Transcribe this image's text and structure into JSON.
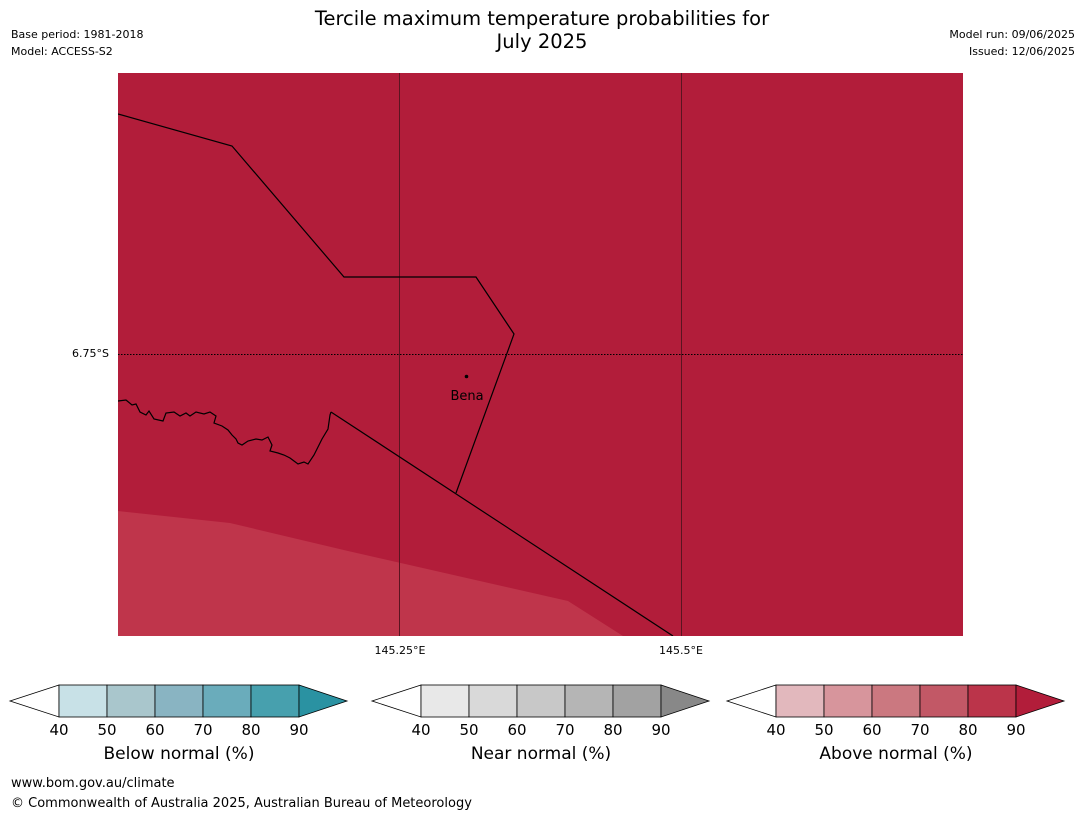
{
  "header": {
    "title_line1": "Tercile maximum temperature probabilities for",
    "title_line2": "July 2025",
    "base_period": "Base period: 1981-2018",
    "model": "Model: ACCESS-S2",
    "model_run": "Model run: 09/06/2025",
    "issued": "Issued: 12/06/2025"
  },
  "map": {
    "place_label": "Bena",
    "lat_label": "6.75°S",
    "lon_labels": [
      "145.25°E",
      "145.5°E"
    ],
    "colors": {
      "fill_main": "#b21d3a",
      "fill_light": "#bf354b",
      "border": "#000000"
    }
  },
  "legends": [
    {
      "name": "below",
      "label": "Below normal (%)",
      "ticks": [
        "40",
        "50",
        "60",
        "70",
        "80",
        "90"
      ],
      "colors": [
        "#c8e1e7",
        "#a9c6cc",
        "#89b4c2",
        "#6aacbb",
        "#47a0ae"
      ],
      "arrow_color": "#2a92a2"
    },
    {
      "name": "near",
      "label": "Near normal (%)",
      "ticks": [
        "40",
        "50",
        "60",
        "70",
        "80",
        "90"
      ],
      "colors": [
        "#e8e8e8",
        "#d9d9d9",
        "#c8c8c8",
        "#b5b5b5",
        "#a2a2a2"
      ],
      "arrow_color": "#888888"
    },
    {
      "name": "above",
      "label": "Above normal (%)",
      "ticks": [
        "40",
        "50",
        "60",
        "70",
        "80",
        "90"
      ],
      "colors": [
        "#e2b8bd",
        "#d7959c",
        "#cb7880",
        "#c25866",
        "#bb344a"
      ],
      "arrow_color": "#b21d3a"
    }
  ],
  "footer": {
    "url": "www.bom.gov.au/climate",
    "copyright": "© Commonwealth of Australia 2025, Australian Bureau of Meteorology"
  }
}
